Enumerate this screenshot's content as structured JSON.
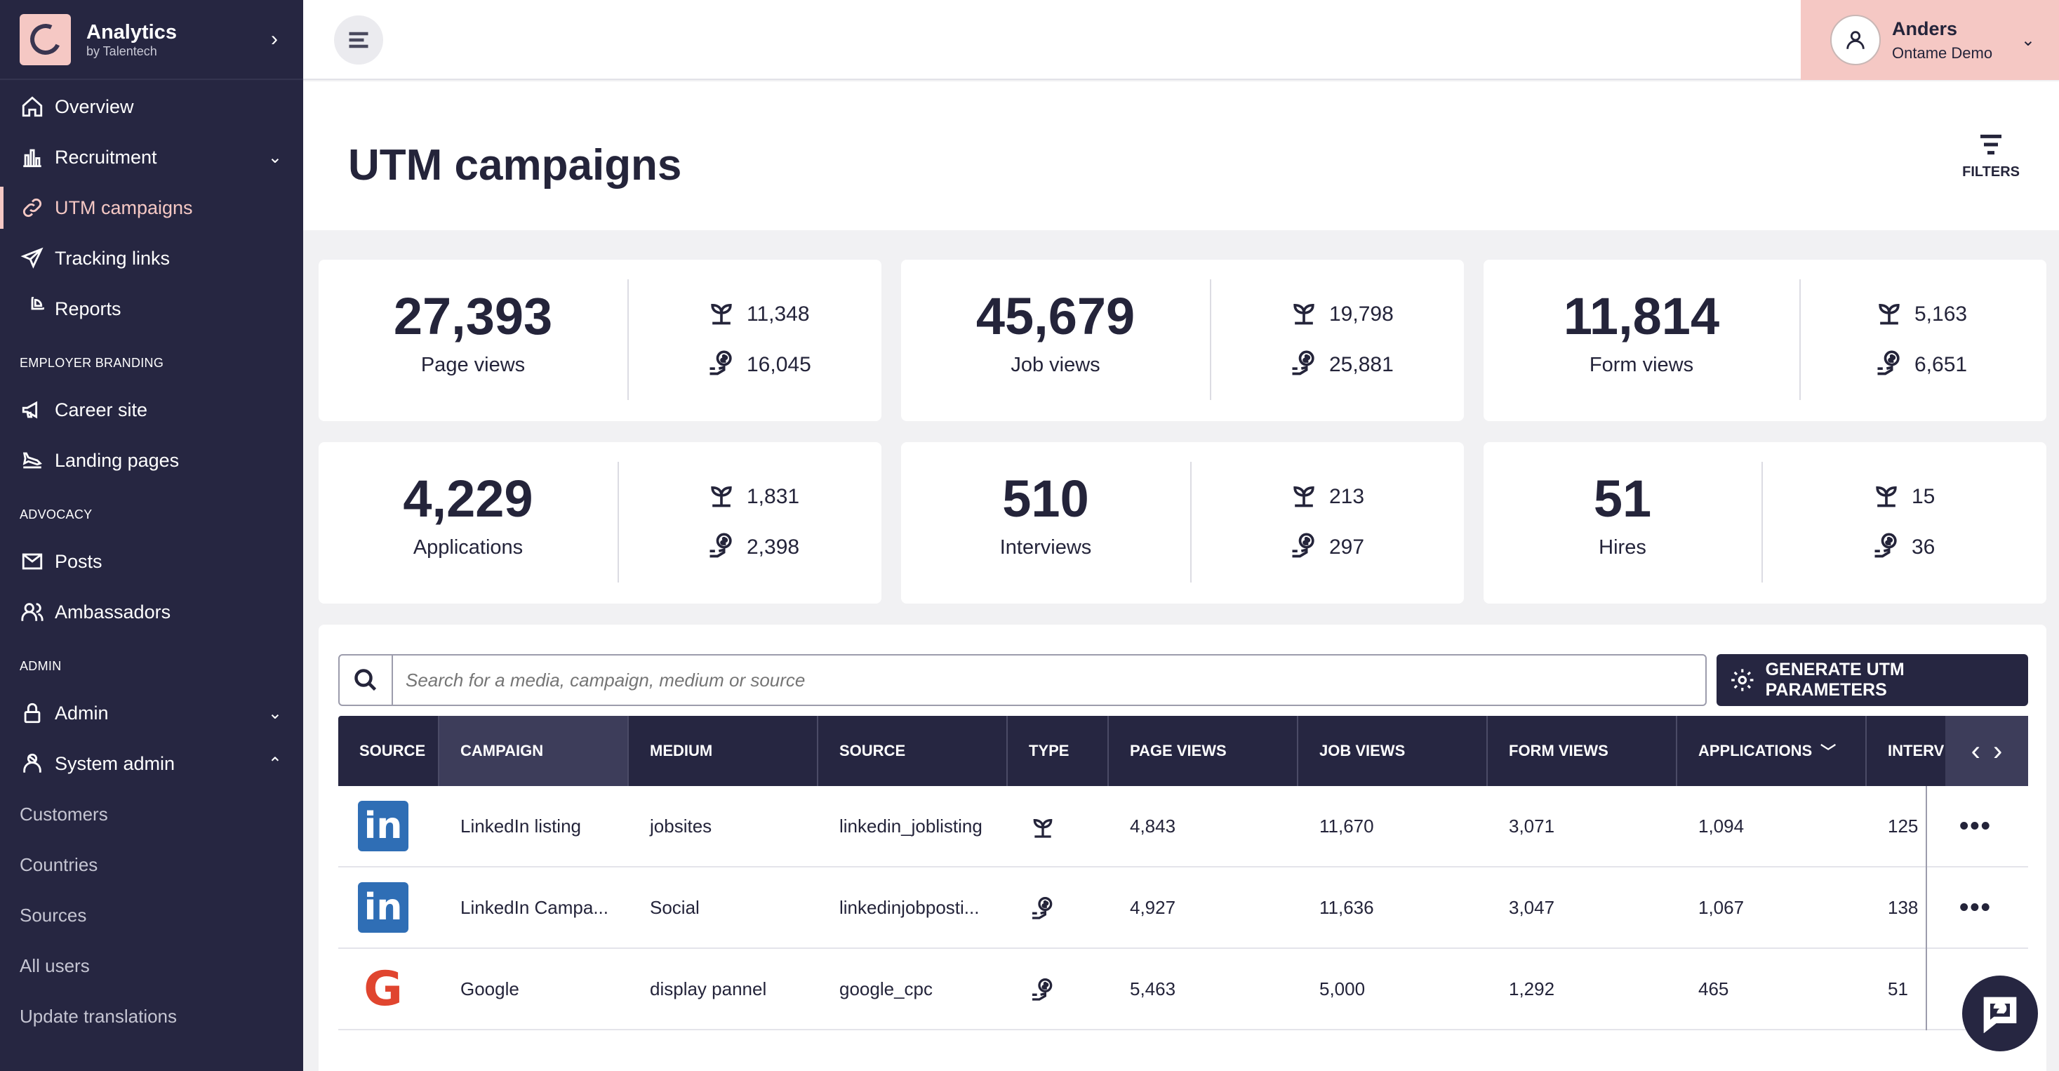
{
  "brand": {
    "title": "Analytics",
    "subtitle": "by Talentech"
  },
  "sidebar": {
    "items": [
      {
        "label": "Overview",
        "icon": "home-icon"
      },
      {
        "label": "Recruitment",
        "icon": "bar-chart-icon"
      },
      {
        "label": "UTM campaigns",
        "icon": "link-icon"
      },
      {
        "label": "Tracking links",
        "icon": "send-icon"
      },
      {
        "label": "Reports",
        "icon": "pie-chart-icon"
      }
    ],
    "section_employer": "EMPLOYER BRANDING",
    "employer_items": [
      {
        "label": "Career site",
        "icon": "megaphone-icon"
      },
      {
        "label": "Landing pages",
        "icon": "landing-icon"
      }
    ],
    "section_advocacy": "ADVOCACY",
    "advocacy_items": [
      {
        "label": "Posts",
        "icon": "mail-icon"
      },
      {
        "label": "Ambassadors",
        "icon": "users-icon"
      }
    ],
    "section_admin": "ADMIN",
    "admin_items": [
      {
        "label": "Admin",
        "icon": "lock-icon"
      },
      {
        "label": "System admin",
        "icon": "system-admin-icon"
      }
    ],
    "system_sub": [
      "Customers",
      "Countries",
      "Sources",
      "All users",
      "Update translations"
    ]
  },
  "user": {
    "name": "Anders",
    "org": "Ontame Demo"
  },
  "page": {
    "title": "UTM campaigns",
    "filters_label": "FILTERS"
  },
  "stats": [
    {
      "value": "27,393",
      "label": "Page views",
      "organic": "11,348",
      "paid": "16,045"
    },
    {
      "value": "45,679",
      "label": "Job views",
      "organic": "19,798",
      "paid": "25,881"
    },
    {
      "value": "11,814",
      "label": "Form views",
      "organic": "5,163",
      "paid": "6,651"
    },
    {
      "value": "4,229",
      "label": "Applications",
      "organic": "1,831",
      "paid": "2,398"
    },
    {
      "value": "510",
      "label": "Interviews",
      "organic": "213",
      "paid": "297"
    },
    {
      "value": "51",
      "label": "Hires",
      "organic": "15",
      "paid": "36"
    }
  ],
  "search": {
    "placeholder": "Search for a media, campaign, medium or source"
  },
  "generate_button": "GENERATE UTM PARAMETERS",
  "table": {
    "columns": [
      "SOURCE",
      "CAMPAIGN",
      "MEDIUM",
      "SOURCE",
      "TYPE",
      "PAGE VIEWS",
      "JOB VIEWS",
      "FORM VIEWS",
      "APPLICATIONS",
      "INTERV"
    ],
    "rows": [
      {
        "logo": "linkedin",
        "campaign": "LinkedIn listing",
        "medium": "jobsites",
        "source": "linkedin_joblisting",
        "type": "organic",
        "page_views": "4,843",
        "job_views": "11,670",
        "form_views": "3,071",
        "applications": "1,094",
        "interviews": "125"
      },
      {
        "logo": "linkedin",
        "campaign": "LinkedIn Campa...",
        "medium": "Social",
        "source": "linkedinjobposti...",
        "type": "paid",
        "page_views": "4,927",
        "job_views": "11,636",
        "form_views": "3,047",
        "applications": "1,067",
        "interviews": "138"
      },
      {
        "logo": "google",
        "campaign": "Google",
        "medium": "display pannel",
        "source": "google_cpc",
        "type": "paid",
        "page_views": "5,463",
        "job_views": "5,000",
        "form_views": "1,292",
        "applications": "465",
        "interviews": "51"
      }
    ]
  },
  "colors": {
    "sidebar": "#262641",
    "accent": "#f5c8c4",
    "linkedin": "#2f6eb5"
  }
}
